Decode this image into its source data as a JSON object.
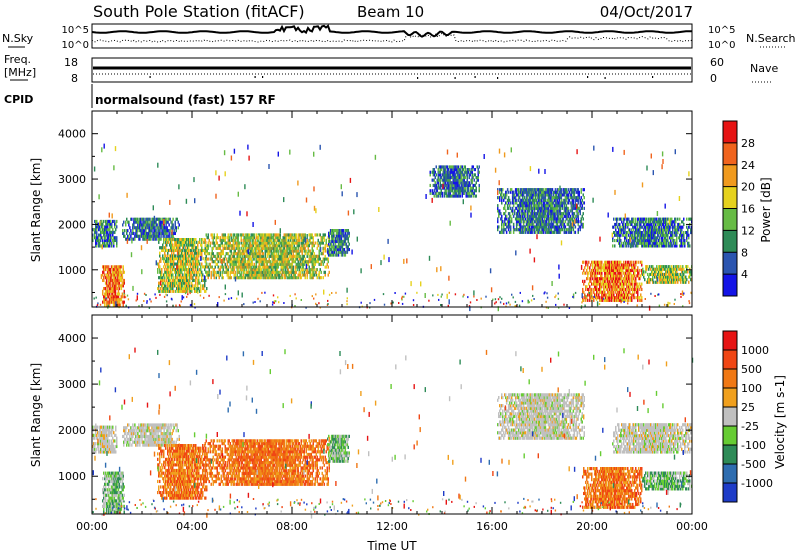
{
  "header": {
    "station": "South Pole Station (fitACF)",
    "beam": "Beam 10",
    "date": "04/Oct/2017"
  },
  "params": {
    "nsky_label": "N.Sky",
    "nsky_ticks": [
      "10^5",
      "10^0"
    ],
    "nsearch_label": "N.Search",
    "nsearch_ticks": [
      "10^5",
      "10^0"
    ],
    "freq_label_1": "Freq.",
    "freq_label_2": "[MHz]",
    "freq_ticks": [
      "18",
      "8"
    ],
    "nave_label": "Nave",
    "nave_ticks": [
      "60",
      "0"
    ],
    "cpid_label": "CPID",
    "cpid_value": "normalsound (fast) 157 RF"
  },
  "chart_data": [
    {
      "type": "heatmap",
      "name": "Power",
      "ylabel": "Slant Range [km]",
      "xlabel": "Time UT",
      "ylim": [
        180,
        4500
      ],
      "yticks": [
        1000,
        2000,
        3000,
        4000
      ],
      "xticks": [
        "00:00",
        "04:00",
        "08:00",
        "12:00",
        "16:00",
        "20:00",
        "00:00"
      ],
      "colorbar": {
        "label": "Power [dB]",
        "ticks": [
          "4",
          "8",
          "12",
          "16",
          "20",
          "24",
          "28"
        ],
        "colors": [
          "#1414e6",
          "#2b55b0",
          "#2e8b57",
          "#66bb44",
          "#e6d21e",
          "#f09a1e",
          "#f0641e",
          "#e61414"
        ]
      },
      "echo_regions": [
        {
          "t": [
            0.0,
            1.0
          ],
          "range": [
            1500,
            2100
          ],
          "level": "low"
        },
        {
          "t": [
            0.4,
            1.3
          ],
          "range": [
            200,
            1100
          ],
          "level": "high"
        },
        {
          "t": [
            1.2,
            3.5
          ],
          "range": [
            1650,
            2150
          ],
          "level": "low"
        },
        {
          "t": [
            2.6,
            4.6
          ],
          "range": [
            500,
            1700
          ],
          "level": "mid"
        },
        {
          "t": [
            4.5,
            9.5
          ],
          "range": [
            800,
            1800
          ],
          "level": "mid"
        },
        {
          "t": [
            9.4,
            10.3
          ],
          "range": [
            1300,
            1900
          ],
          "level": "low"
        },
        {
          "t": [
            13.5,
            15.5
          ],
          "range": [
            2600,
            3300
          ],
          "level": "low"
        },
        {
          "t": [
            16.2,
            19.7
          ],
          "range": [
            1800,
            2800
          ],
          "level": "low"
        },
        {
          "t": [
            19.6,
            22.0
          ],
          "range": [
            300,
            1200
          ],
          "level": "high"
        },
        {
          "t": [
            20.8,
            24.0
          ],
          "range": [
            1500,
            2150
          ],
          "level": "low"
        },
        {
          "t": [
            22.0,
            24.0
          ],
          "range": [
            700,
            1100
          ],
          "level": "mid"
        }
      ]
    },
    {
      "type": "heatmap",
      "name": "Velocity",
      "ylabel": "Slant Range [km]",
      "xlabel": "Time UT",
      "ylim": [
        180,
        4500
      ],
      "yticks": [
        1000,
        2000,
        3000,
        4000
      ],
      "xticks": [
        "00:00",
        "04:00",
        "08:00",
        "12:00",
        "16:00",
        "20:00",
        "00:00"
      ],
      "colorbar": {
        "label": "Velocity [m s-1]",
        "ticks": [
          "1000",
          "500",
          "100",
          "25",
          "-25",
          "-100",
          "-500",
          "-1000"
        ],
        "colors": [
          "#1e3cc8",
          "#2e6db0",
          "#2e8b57",
          "#66cc33",
          "#c0c0c0",
          "#f0a01e",
          "#f07814",
          "#f04614",
          "#e61414"
        ]
      },
      "echo_regions": [
        {
          "t": [
            0.0,
            1.0
          ],
          "range": [
            1500,
            2100
          ],
          "level": "gray"
        },
        {
          "t": [
            0.4,
            1.3
          ],
          "range": [
            200,
            1100
          ],
          "level": "green"
        },
        {
          "t": [
            1.2,
            3.5
          ],
          "range": [
            1650,
            2150
          ],
          "level": "gray"
        },
        {
          "t": [
            2.6,
            4.6
          ],
          "range": [
            500,
            1700
          ],
          "level": "orange"
        },
        {
          "t": [
            4.5,
            9.5
          ],
          "range": [
            800,
            1800
          ],
          "level": "orange"
        },
        {
          "t": [
            9.4,
            10.3
          ],
          "range": [
            1300,
            1900
          ],
          "level": "green"
        },
        {
          "t": [
            16.2,
            19.7
          ],
          "range": [
            1800,
            2800
          ],
          "level": "gray"
        },
        {
          "t": [
            19.6,
            22.0
          ],
          "range": [
            300,
            1200
          ],
          "level": "orange"
        },
        {
          "t": [
            20.8,
            24.0
          ],
          "range": [
            1500,
            2150
          ],
          "level": "gray"
        },
        {
          "t": [
            22.0,
            24.0
          ],
          "range": [
            700,
            1100
          ],
          "level": "green"
        }
      ]
    }
  ]
}
